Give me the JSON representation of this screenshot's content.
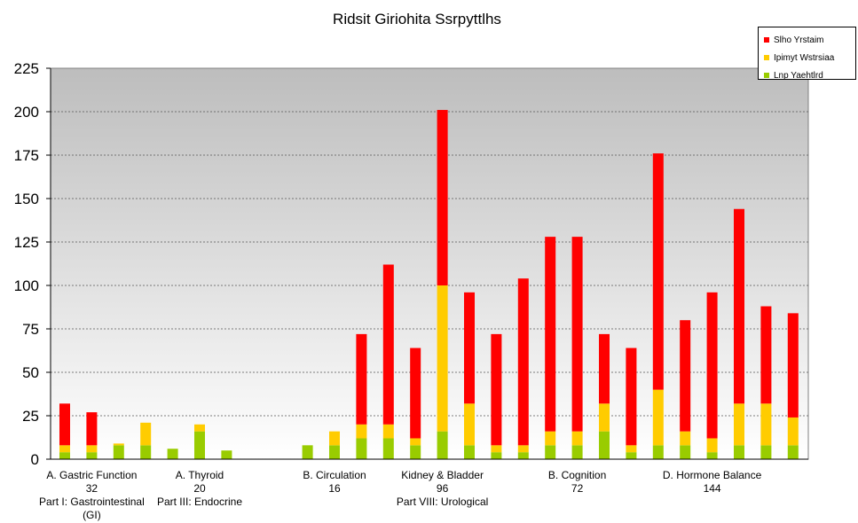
{
  "chart_data": {
    "type": "bar",
    "stacked": true,
    "title": "Ridsit Giriohita Ssrpyttlhs",
    "ylim": [
      0,
      225
    ],
    "yticks": [
      0,
      25,
      50,
      75,
      100,
      125,
      150,
      175,
      200,
      225
    ],
    "grid": true,
    "legend_position": "top-right",
    "background": "gradient-gray",
    "series": [
      {
        "name": "Lnp Yaehtlrd",
        "color": "#99cc00",
        "values": [
          4,
          4,
          8,
          8,
          6,
          16,
          5,
          0,
          0,
          8,
          8,
          12,
          12,
          8,
          16,
          8,
          4,
          4,
          8,
          8,
          16,
          4,
          8,
          8,
          4,
          8,
          8,
          8
        ]
      },
      {
        "name": "Ipimyt Wstrsiaa",
        "color": "#ffcc00",
        "values": [
          4,
          4,
          1,
          13,
          0,
          4,
          0,
          0,
          0,
          0,
          8,
          8,
          8,
          4,
          84,
          24,
          4,
          4,
          8,
          8,
          16,
          4,
          32,
          8,
          8,
          24,
          24,
          16
        ]
      },
      {
        "name": "Slho Yrstaim",
        "color": "#ff0000",
        "values": [
          24,
          19,
          0,
          0,
          0,
          0,
          0,
          0,
          0,
          0,
          0,
          52,
          92,
          52,
          101,
          64,
          64,
          96,
          112,
          112,
          40,
          56,
          136,
          64,
          84,
          112,
          56,
          60
        ]
      }
    ],
    "category_labels": [
      {
        "lines": [
          "A. Gastric Function",
          "32"
        ],
        "at": 1
      },
      {
        "lines": [
          "A. Thyroid",
          "20"
        ],
        "at": 5
      },
      {
        "lines": [
          "B. Circulation",
          "16"
        ],
        "at": 10
      },
      {
        "lines": [
          "Kidney & Bladder",
          "96"
        ],
        "at": 14
      },
      {
        "lines": [
          "B. Cognition",
          "72"
        ],
        "at": 19
      },
      {
        "lines": [
          "D. Hormone Balance",
          "144"
        ],
        "at": 24
      }
    ],
    "group_labels": [
      {
        "lines": [
          "Part I: Gastrointestinal",
          "(GI)"
        ],
        "at": 1
      },
      {
        "lines": [
          "Part III: Endocrine"
        ],
        "at": 5
      },
      {
        "lines": [
          "Part VIII: Urological"
        ],
        "at": 14
      }
    ]
  }
}
